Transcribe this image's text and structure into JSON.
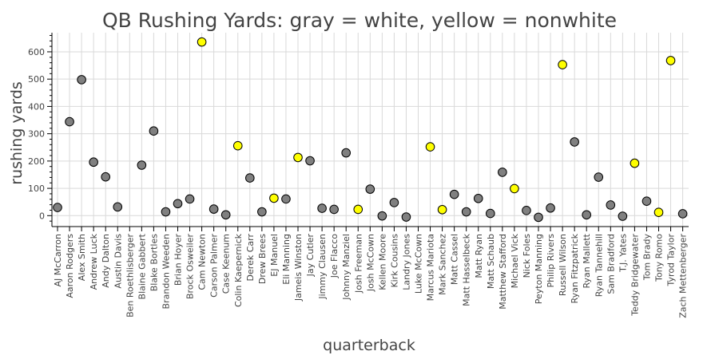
{
  "colors": {
    "white": "#808080",
    "nonwhite": "#ffff00",
    "grid": "#d9d9d9"
  },
  "chart_data": {
    "type": "scatter",
    "title": "QB Rushing Yards: gray = white, yellow = nonwhite",
    "xlabel": "quarterback",
    "ylabel": "rushing yards",
    "ylim": [
      -40,
      670
    ],
    "yticks": [
      0,
      100,
      200,
      300,
      400,
      500,
      600
    ],
    "grid": true,
    "categories": [
      "AJ McCarron",
      "Aaron Rodgers",
      "Alex Smith",
      "Andrew Luck",
      "Andy Dalton",
      "Austin Davis",
      "Ben Roethlisberger",
      "Blaine Gabbert",
      "Blake Bortles",
      "Brandon Weeden",
      "Brian Hoyer",
      "Brock Osweiler",
      "Cam Newton",
      "Carson Palmer",
      "Case Keenum",
      "Colin Kaepernick",
      "Derek Carr",
      "Drew Brees",
      "EJ Manuel",
      "Eli Manning",
      "Jameis Winston",
      "Jay Cutler",
      "Jimmy Clausen",
      "Joe Flacco",
      "Johnny Manziel",
      "Josh Freeman",
      "Josh McCown",
      "Kellen Moore",
      "Kirk Cousins",
      "Landry Jones",
      "Luke McCown",
      "Marcus Mariota",
      "Mark Sanchez",
      "Matt Cassel",
      "Matt Hasselbeck",
      "Matt Ryan",
      "Matt Schaub",
      "Matthew Stafford",
      "Michael Vick",
      "Nick Foles",
      "Peyton Manning",
      "Philip Rivers",
      "Russell Wilson",
      "Ryan Fitzpatrick",
      "Ryan Mallett",
      "Ryan Tannehill",
      "Sam Bradford",
      "T.J. Yates",
      "Teddy Bridgewater",
      "Tom Brady",
      "Tony Romo",
      "Tyrod Taylor",
      "Zach Mettenberger"
    ],
    "points": [
      {
        "x": "AJ McCarron",
        "y": 30,
        "group": "white"
      },
      {
        "x": "Aaron Rodgers",
        "y": 344,
        "group": "white"
      },
      {
        "x": "Alex Smith",
        "y": 498,
        "group": "white"
      },
      {
        "x": "Andrew Luck",
        "y": 196,
        "group": "white"
      },
      {
        "x": "Andy Dalton",
        "y": 142,
        "group": "white"
      },
      {
        "x": "Austin Davis",
        "y": 32,
        "group": "white"
      },
      {
        "x": "Blaine Gabbert",
        "y": 185,
        "group": "white"
      },
      {
        "x": "Blake Bortles",
        "y": 310,
        "group": "white"
      },
      {
        "x": "Brandon Weeden",
        "y": 14,
        "group": "white"
      },
      {
        "x": "Brian Hoyer",
        "y": 44,
        "group": "white"
      },
      {
        "x": "Brock Osweiler",
        "y": 61,
        "group": "white"
      },
      {
        "x": "Cam Newton",
        "y": 636,
        "group": "nonwhite"
      },
      {
        "x": "Carson Palmer",
        "y": 24,
        "group": "white"
      },
      {
        "x": "Case Keenum",
        "y": 3,
        "group": "white"
      },
      {
        "x": "Colin Kaepernick",
        "y": 256,
        "group": "nonwhite"
      },
      {
        "x": "Derek Carr",
        "y": 138,
        "group": "white"
      },
      {
        "x": "Drew Brees",
        "y": 14,
        "group": "white"
      },
      {
        "x": "EJ Manuel",
        "y": 64,
        "group": "nonwhite"
      },
      {
        "x": "Eli Manning",
        "y": 61,
        "group": "white"
      },
      {
        "x": "Jameis Winston",
        "y": 213,
        "group": "nonwhite"
      },
      {
        "x": "Jay Cutler",
        "y": 201,
        "group": "white"
      },
      {
        "x": "Jimmy Clausen",
        "y": 27,
        "group": "white"
      },
      {
        "x": "Joe Flacco",
        "y": 23,
        "group": "white"
      },
      {
        "x": "Johnny Manziel",
        "y": 230,
        "group": "white"
      },
      {
        "x": "Josh Freeman",
        "y": 23,
        "group": "nonwhite"
      },
      {
        "x": "Josh McCown",
        "y": 97,
        "group": "white"
      },
      {
        "x": "Kellen Moore",
        "y": -1,
        "group": "white"
      },
      {
        "x": "Kirk Cousins",
        "y": 48,
        "group": "white"
      },
      {
        "x": "Landry Jones",
        "y": -5,
        "group": "white"
      },
      {
        "x": "Marcus Mariota",
        "y": 252,
        "group": "nonwhite"
      },
      {
        "x": "Mark Sanchez",
        "y": 22,
        "group": "nonwhite"
      },
      {
        "x": "Matt Cassel",
        "y": 78,
        "group": "white"
      },
      {
        "x": "Matt Hasselbeck",
        "y": 14,
        "group": "white"
      },
      {
        "x": "Matt Ryan",
        "y": 63,
        "group": "white"
      },
      {
        "x": "Matt Schaub",
        "y": 8,
        "group": "white"
      },
      {
        "x": "Matthew Stafford",
        "y": 159,
        "group": "white"
      },
      {
        "x": "Michael Vick",
        "y": 99,
        "group": "nonwhite"
      },
      {
        "x": "Nick Foles",
        "y": 19,
        "group": "white"
      },
      {
        "x": "Peyton Manning",
        "y": -6,
        "group": "white"
      },
      {
        "x": "Philip Rivers",
        "y": 28,
        "group": "white"
      },
      {
        "x": "Russell Wilson",
        "y": 553,
        "group": "nonwhite"
      },
      {
        "x": "Ryan Fitzpatrick",
        "y": 270,
        "group": "white"
      },
      {
        "x": "Ryan Mallett",
        "y": 3,
        "group": "white"
      },
      {
        "x": "Ryan Tannehill",
        "y": 141,
        "group": "white"
      },
      {
        "x": "Sam Bradford",
        "y": 39,
        "group": "white"
      },
      {
        "x": "T.J. Yates",
        "y": -2,
        "group": "white"
      },
      {
        "x": "Teddy Bridgewater",
        "y": 192,
        "group": "nonwhite"
      },
      {
        "x": "Tom Brady",
        "y": 53,
        "group": "white"
      },
      {
        "x": "Tony Romo",
        "y": 12,
        "group": "nonwhite"
      },
      {
        "x": "Tyrod Taylor",
        "y": 568,
        "group": "nonwhite"
      },
      {
        "x": "Zach Mettenberger",
        "y": 7,
        "group": "white"
      }
    ]
  }
}
